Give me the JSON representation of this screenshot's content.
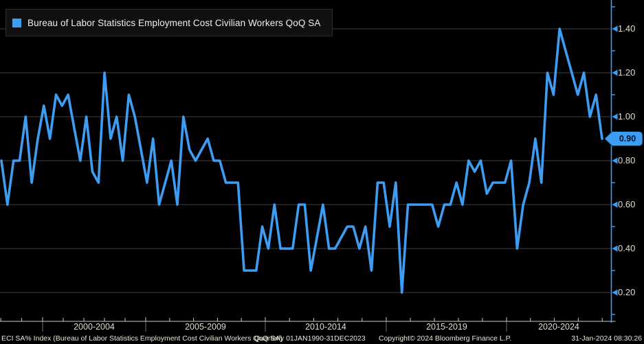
{
  "legend": {
    "label": "Bureau of Labor Statistics Employment Cost Civilian Workers QoQ SA"
  },
  "y_axis": {
    "ticks": [
      "1.40",
      "1.20",
      "1.00",
      "0.80",
      "0.60",
      "0.40",
      "0.20"
    ],
    "last_value_badge": "0.90"
  },
  "x_axis": {
    "labels": [
      "2000-2004",
      "2005-2009",
      "2010-2014",
      "2015-2019",
      "2020-2024"
    ]
  },
  "footer": {
    "left": "ECI SA% Index (Bureau of Labor Statistics Employment Cost Civilian Workers QoQ SA)",
    "range": "Quarterly 01JAN1990-31DEC2023",
    "copyright": "Copyright© 2024 Bloomberg Finance L.P.",
    "timestamp": "31-Jan-2024 08:30:26"
  },
  "colors": {
    "background": "#000000",
    "line": "#3d9df3",
    "axis_label": "#dfdfcf",
    "grid": "#404040",
    "baseline": "#cccccc",
    "divider": "#6f6f6f",
    "badge_fill": "#3d9df3",
    "badge_text": "#04112a"
  },
  "chart_data": {
    "type": "line",
    "title": "Bureau of Labor Statistics Employment Cost Civilian Workers QoQ SA",
    "frequency": "Quarterly",
    "period": "01JAN1990-31DEC2023",
    "x_section_labels": [
      "2000-2004",
      "2005-2009",
      "2010-2014",
      "2015-2019",
      "2020-2024"
    ],
    "y_ticks": [
      1.4,
      1.2,
      1.0,
      0.8,
      0.6,
      0.4,
      0.2
    ],
    "ylim": [
      0.1,
      1.5
    ],
    "last_value": 0.9,
    "values": [
      0.8,
      0.6,
      0.8,
      0.8,
      1.0,
      0.7,
      0.9,
      1.05,
      0.9,
      1.1,
      1.05,
      1.1,
      0.95,
      0.8,
      1.0,
      0.75,
      0.7,
      1.2,
      0.9,
      1.0,
      0.8,
      1.1,
      1.0,
      0.85,
      0.7,
      0.9,
      0.6,
      0.7,
      0.8,
      0.6,
      1.0,
      0.85,
      0.8,
      0.85,
      0.9,
      0.8,
      0.8,
      0.7,
      0.7,
      0.7,
      0.3,
      0.3,
      0.3,
      0.5,
      0.4,
      0.6,
      0.4,
      0.4,
      0.4,
      0.6,
      0.6,
      0.3,
      0.45,
      0.6,
      0.4,
      0.4,
      0.45,
      0.5,
      0.5,
      0.4,
      0.5,
      0.3,
      0.7,
      0.7,
      0.5,
      0.7,
      0.2,
      0.6,
      0.6,
      0.6,
      0.6,
      0.6,
      0.5,
      0.6,
      0.6,
      0.7,
      0.6,
      0.8,
      0.75,
      0.8,
      0.65,
      0.7,
      0.7,
      0.7,
      0.8,
      0.4,
      0.6,
      0.7,
      0.9,
      0.7,
      1.2,
      1.1,
      1.4,
      1.3,
      1.2,
      1.1,
      1.2,
      1.0,
      1.1,
      0.9
    ]
  }
}
